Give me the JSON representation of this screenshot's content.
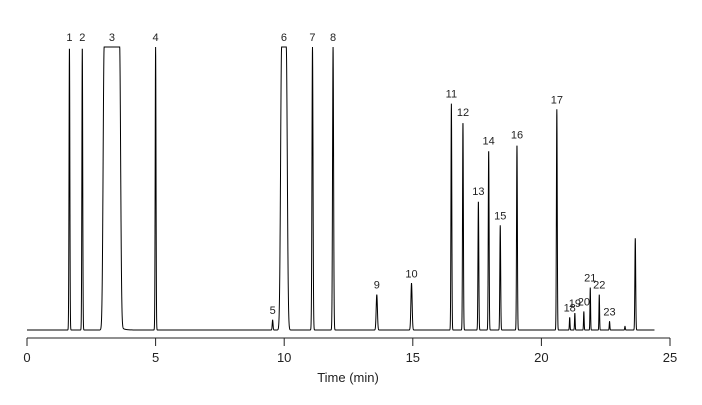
{
  "chart_data": {
    "type": "line",
    "title": "",
    "xlabel": "Time (min)",
    "ylabel": "",
    "xlim": [
      0,
      25
    ],
    "ylim": [
      0,
      100
    ],
    "xticks": [
      0,
      5,
      10,
      15,
      20,
      25
    ],
    "xtick_labels": [
      "0",
      "5",
      "10",
      "15",
      "20",
      "25"
    ],
    "grid": false,
    "legend": "none",
    "line_color": "#000000",
    "peaks": [
      {
        "label": "1",
        "rt": 1.65,
        "height": 100,
        "width": 0.04
      },
      {
        "label": "2",
        "rt": 2.15,
        "height": 100,
        "width": 0.04
      },
      {
        "label": "3",
        "rt": 3.0,
        "height": 100,
        "width": 0.6,
        "flat_top": true
      },
      {
        "label": "4",
        "rt": 5.0,
        "height": 100,
        "width": 0.04
      },
      {
        "label": "5",
        "rt": 9.55,
        "height": 3.5,
        "width": 0.04
      },
      {
        "label": "6",
        "rt": 9.9,
        "height": 100,
        "width": 0.18,
        "flat_top": true
      },
      {
        "label": "7",
        "rt": 11.1,
        "height": 100,
        "width": 0.05
      },
      {
        "label": "8",
        "rt": 11.9,
        "height": 100,
        "width": 0.05
      },
      {
        "label": "9",
        "rt": 13.6,
        "height": 12.5,
        "width": 0.06
      },
      {
        "label": "10",
        "rt": 14.95,
        "height": 16.5,
        "width": 0.06
      },
      {
        "label": "11",
        "rt": 16.5,
        "height": 80,
        "width": 0.04
      },
      {
        "label": "12",
        "rt": 16.95,
        "height": 73.5,
        "width": 0.04
      },
      {
        "label": "13",
        "rt": 17.55,
        "height": 45.5,
        "width": 0.04
      },
      {
        "label": "14",
        "rt": 17.95,
        "height": 63.5,
        "width": 0.04
      },
      {
        "label": "15",
        "rt": 18.4,
        "height": 37,
        "width": 0.04
      },
      {
        "label": "16",
        "rt": 19.05,
        "height": 65.5,
        "width": 0.04
      },
      {
        "label": "17",
        "rt": 20.6,
        "height": 78,
        "width": 0.04
      },
      {
        "label": "18",
        "rt": 21.1,
        "height": 4.5,
        "width": 0.03
      },
      {
        "label": "19",
        "rt": 21.3,
        "height": 6,
        "width": 0.03
      },
      {
        "label": "20",
        "rt": 21.65,
        "height": 6.5,
        "width": 0.03
      },
      {
        "label": "21",
        "rt": 21.9,
        "height": 15,
        "width": 0.03
      },
      {
        "label": "22",
        "rt": 22.25,
        "height": 12.5,
        "width": 0.03
      },
      {
        "label": "23",
        "rt": 22.65,
        "height": 3,
        "width": 0.03
      },
      {
        "label": "",
        "rt": 23.25,
        "height": 1.3,
        "width": 0.03
      },
      {
        "label": "",
        "rt": 23.65,
        "height": 32.5,
        "width": 0.04
      }
    ],
    "tail": {
      "after_rt": 3.4,
      "height": 8,
      "decay": 0.12
    },
    "end_rt": 24.4
  }
}
